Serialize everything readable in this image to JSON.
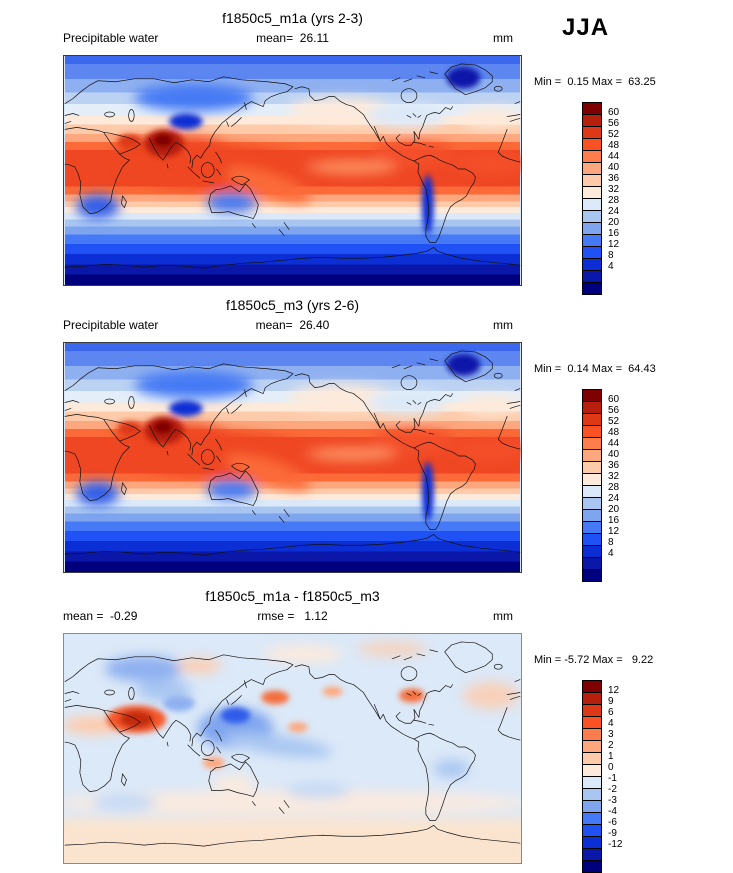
{
  "season": "JJA",
  "palette": [
    "#7f0000",
    "#b71f0d",
    "#dd3916",
    "#fb5224",
    "#fd7e4c",
    "#fda77e",
    "#fecbaa",
    "#fdeadb",
    "#dce9f8",
    "#a9c6f1",
    "#7fa5ef",
    "#4579f5",
    "#1f51f4",
    "#0b2fd5",
    "#0a17a9",
    "#00007f"
  ],
  "panels": [
    {
      "title": "f1850c5_m1a (yrs 2-3)",
      "left_label": "Precipitable water",
      "center_label": "mean=  26.11",
      "units_label": "mm",
      "minmax_label": "Min =  0.15 Max =  63.25",
      "colorbar_ticks": [
        60,
        56,
        52,
        48,
        44,
        40,
        36,
        32,
        28,
        24,
        20,
        16,
        12,
        8,
        4
      ]
    },
    {
      "title": "f1850c5_m3 (yrs 2-6)",
      "left_label": "Precipitable water",
      "center_label": "mean=  26.40",
      "units_label": "mm",
      "minmax_label": "Min =  0.14 Max =  64.43",
      "colorbar_ticks": [
        60,
        56,
        52,
        48,
        44,
        40,
        36,
        32,
        28,
        24,
        20,
        16,
        12,
        8,
        4
      ]
    },
    {
      "title": "f1850c5_m1a - f1850c5_m3",
      "left_label": "mean =  -0.29",
      "center_label": "rmse =   1.12",
      "units_label": "mm",
      "minmax_label": "Min = -5.72 Max =   9.22",
      "colorbar_ticks": [
        12,
        9,
        6,
        4,
        3,
        2,
        1,
        0,
        -1,
        -2,
        -3,
        -4,
        -6,
        -9,
        -12
      ]
    }
  ],
  "chart_data": [
    {
      "type": "heatmap",
      "title": "f1850c5_m1a (yrs 2-3)",
      "variable": "Precipitable water",
      "season": "JJA",
      "units": "mm",
      "mean": 26.11,
      "min": 0.15,
      "max": 63.25,
      "projection": "global cylindrical equidistant, Pacific-centered",
      "contour_levels": [
        4,
        8,
        12,
        16,
        20,
        24,
        28,
        32,
        36,
        40,
        44,
        48,
        52,
        56,
        60
      ],
      "legend_position": "right",
      "colormap": "blue-white-red diverging, 16 classes"
    },
    {
      "type": "heatmap",
      "title": "f1850c5_m3 (yrs 2-6)",
      "variable": "Precipitable water",
      "season": "JJA",
      "units": "mm",
      "mean": 26.4,
      "min": 0.14,
      "max": 64.43,
      "projection": "global cylindrical equidistant, Pacific-centered",
      "contour_levels": [
        4,
        8,
        12,
        16,
        20,
        24,
        28,
        32,
        36,
        40,
        44,
        48,
        52,
        56,
        60
      ],
      "legend_position": "right",
      "colormap": "blue-white-red diverging, 16 classes"
    },
    {
      "type": "heatmap",
      "title": "f1850c5_m1a - f1850c5_m3",
      "variable": "Precipitable water difference",
      "season": "JJA",
      "units": "mm",
      "mean": -0.29,
      "rmse": 1.12,
      "min": -5.72,
      "max": 9.22,
      "projection": "global cylindrical equidistant, Pacific-centered",
      "contour_levels": [
        -12,
        -9,
        -6,
        -4,
        -3,
        -2,
        -1,
        0,
        1,
        2,
        3,
        4,
        6,
        9,
        12
      ],
      "legend_position": "right",
      "colormap": "blue-white-red diverging, 16 classes"
    }
  ]
}
